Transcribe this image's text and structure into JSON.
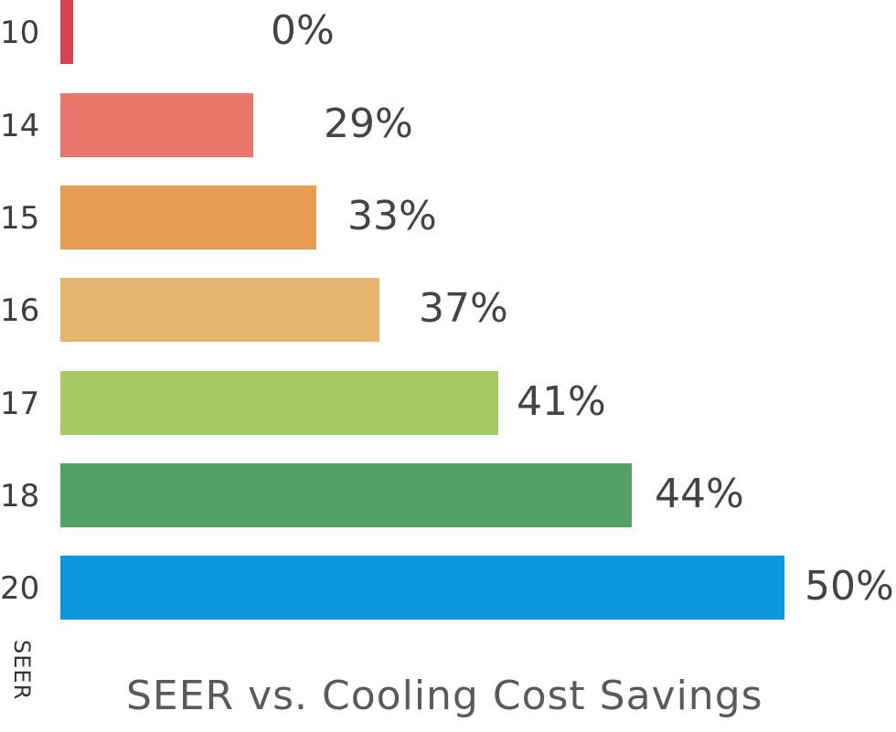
{
  "chart_data": {
    "type": "bar",
    "orientation": "horizontal",
    "title": "SEER vs. Cooling Cost Savings",
    "ylabel": "SEER",
    "xlabel": "",
    "categories": [
      "10",
      "14",
      "15",
      "16",
      "17",
      "18",
      "20"
    ],
    "values": [
      0,
      29,
      33,
      37,
      41,
      44,
      50
    ],
    "data_labels": [
      "0%",
      "29%",
      "33%",
      "37%",
      "41%",
      "44%",
      "50%"
    ],
    "colors": [
      "#d9434f",
      "#e8766a",
      "#e69d52",
      "#e5b66f",
      "#a5c965",
      "#52a265",
      "#0d97dd"
    ],
    "grid": false,
    "legend": "none"
  }
}
